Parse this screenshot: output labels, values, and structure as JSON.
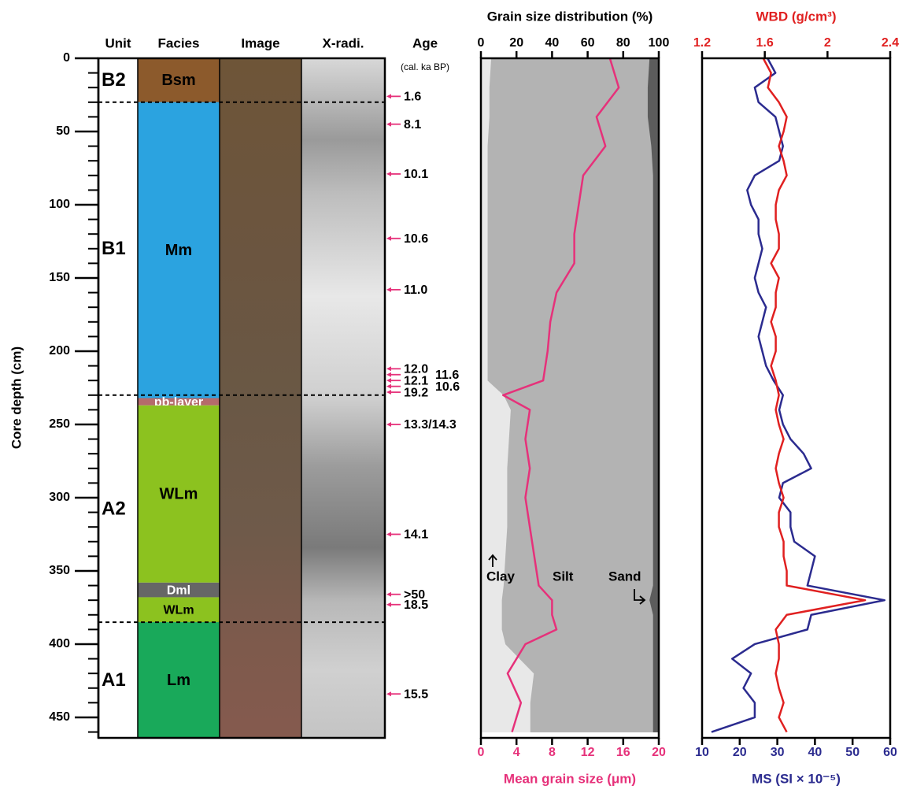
{
  "chart_data": [
    {
      "type": "core-log",
      "ylabel": "Core depth (cm)",
      "ylim": [
        0,
        464
      ],
      "yticks": [
        0,
        50,
        100,
        150,
        200,
        250,
        300,
        350,
        400,
        450
      ],
      "yminor_step": 10,
      "columns": [
        "Unit",
        "Facies",
        "Image",
        "X-radi.",
        "Age"
      ],
      "age_subtitle": "(cal. ka BP)",
      "units": [
        {
          "label": "B2",
          "top": 0,
          "bottom": 30
        },
        {
          "label": "B1",
          "top": 30,
          "bottom": 230
        },
        {
          "label": "A2",
          "top": 230,
          "bottom": 385
        },
        {
          "label": "A1",
          "top": 385,
          "bottom": 464
        }
      ],
      "facies": [
        {
          "label": "Bsm",
          "top": 0,
          "bottom": 30,
          "color": "#8c5a2c"
        },
        {
          "label": "Mm",
          "top": 30,
          "bottom": 232,
          "color": "#2ba3e0"
        },
        {
          "label": "pb-layer",
          "top": 232,
          "bottom": 237,
          "color": "#b56b6b",
          "text_color": "#ffffff"
        },
        {
          "label": "WLm",
          "top": 237,
          "bottom": 358,
          "color": "#8cc21f"
        },
        {
          "label": "Dml",
          "top": 358,
          "bottom": 368,
          "color": "#666666",
          "text_color": "#ffffff"
        },
        {
          "label": "WLm",
          "top": 368,
          "bottom": 385,
          "color": "#8cc21f"
        },
        {
          "label": "Lm",
          "top": 385,
          "bottom": 464,
          "color": "#19a95a"
        }
      ],
      "age_color": "#e6317a",
      "ages": [
        {
          "label": "1.6",
          "depth": 26
        },
        {
          "label": "8.1",
          "depth": 45
        },
        {
          "label": "10.1",
          "depth": 79
        },
        {
          "label": "10.6",
          "depth": 123
        },
        {
          "label": "11.0",
          "depth": 158
        },
        {
          "label": "12.0",
          "depth": 212
        },
        {
          "label": "11.6",
          "depth": 216
        },
        {
          "label": "12.1",
          "depth": 220
        },
        {
          "label": "10.6",
          "depth": 224
        },
        {
          "label": "19.2",
          "depth": 228
        },
        {
          "label": "13.3/14.3",
          "depth": 250
        },
        {
          "label": "14.1",
          "depth": 325
        },
        {
          "label": ">50",
          "depth": 366
        },
        {
          "label": "18.5",
          "depth": 373
        },
        {
          "label": "15.5",
          "depth": 434
        }
      ]
    },
    {
      "type": "area",
      "x2label": "Grain size distribution (%)",
      "x2lim": [
        0,
        100
      ],
      "x2ticks": [
        0,
        20,
        40,
        60,
        80,
        100
      ],
      "x2axis_color": "#000000",
      "xlabel": "Mean grain size (μm)",
      "xlim": [
        0,
        20
      ],
      "xticks": [
        0,
        4,
        8,
        12,
        16,
        20
      ],
      "xaxis_color": "#e6317a",
      "ylim": [
        0,
        464
      ],
      "y": [
        0,
        20,
        40,
        60,
        80,
        100,
        120,
        140,
        160,
        180,
        200,
        220,
        230,
        240,
        260,
        280,
        300,
        320,
        340,
        360,
        370,
        380,
        390,
        400,
        420,
        440,
        460
      ],
      "series": [
        {
          "name": "Clay",
          "type": "area",
          "axis": "x2",
          "color": "#e8e8e8",
          "values": [
            6,
            5,
            5,
            4,
            4,
            4,
            4,
            4,
            4,
            4,
            4,
            4,
            13,
            17,
            16,
            15,
            15,
            15,
            14,
            13,
            12,
            12,
            12,
            14,
            30,
            28,
            28
          ]
        },
        {
          "name": "Silt",
          "type": "area",
          "axis": "x2",
          "color": "#b3b3b3",
          "values": [
            89,
            89,
            89,
            92,
            93,
            93,
            93,
            93,
            93,
            93,
            93,
            93,
            84,
            80,
            81,
            82,
            82,
            82,
            83,
            84,
            83,
            85,
            85,
            83,
            67,
            69,
            69
          ]
        },
        {
          "name": "Sand",
          "type": "area",
          "axis": "x2",
          "color": "#5c5c5c",
          "values": [
            5,
            6,
            6,
            4,
            3,
            3,
            3,
            3,
            3,
            3,
            3,
            3,
            3,
            3,
            3,
            3,
            3,
            3,
            3,
            3,
            5,
            3,
            3,
            3,
            3,
            3,
            3
          ]
        },
        {
          "type": "line",
          "axis": "x",
          "color": "#e6317a",
          "values": [
            14.5,
            15.5,
            13,
            14,
            11.5,
            11,
            10.5,
            10.5,
            8.5,
            7.8,
            7.5,
            7,
            2.5,
            5.5,
            5,
            5.5,
            5,
            5.5,
            6,
            6.5,
            8,
            8,
            8.5,
            5,
            3,
            4.5,
            3.5
          ]
        }
      ]
    },
    {
      "type": "line",
      "x2label": "WBD (g/cm³)",
      "x2lim": [
        1.2,
        2.4
      ],
      "x2ticks": [
        1.2,
        1.6,
        2.0,
        2.4
      ],
      "x2axis_color": "#e02020",
      "xlabel": "MS (SI × 10⁻⁵)",
      "xlim": [
        10,
        60
      ],
      "xticks": [
        10,
        20,
        30,
        40,
        50,
        60
      ],
      "xaxis_color": "#2b2b8f",
      "ylim": [
        0,
        464
      ],
      "y": [
        0,
        10,
        20,
        30,
        40,
        50,
        60,
        70,
        80,
        90,
        100,
        110,
        120,
        130,
        140,
        150,
        160,
        170,
        180,
        190,
        200,
        210,
        220,
        230,
        240,
        250,
        260,
        270,
        280,
        290,
        300,
        310,
        320,
        330,
        340,
        350,
        360,
        370,
        380,
        390,
        400,
        410,
        420,
        430,
        440,
        450,
        460
      ],
      "series": [
        {
          "type": "line",
          "axis": "x",
          "color": "#2b2b8f",
          "values": [
            27.4,
            29.5,
            24,
            25,
            29.5,
            30.5,
            31.5,
            30.5,
            24,
            22,
            23,
            25,
            25,
            26,
            25,
            24,
            25,
            27,
            26,
            25,
            26,
            27,
            29,
            31.5,
            30.5,
            31.5,
            33.5,
            37,
            39,
            31.5,
            30.5,
            33.5,
            33.5,
            34.5,
            40,
            39,
            38,
            58.5,
            39,
            38,
            24,
            18,
            23,
            21,
            24,
            24,
            12.5
          ]
        },
        {
          "type": "line",
          "axis": "x2",
          "color": "#e02020",
          "values": [
            1.59,
            1.64,
            1.62,
            1.69,
            1.74,
            1.72,
            1.69,
            1.72,
            1.74,
            1.69,
            1.67,
            1.67,
            1.69,
            1.69,
            1.64,
            1.69,
            1.67,
            1.67,
            1.64,
            1.67,
            1.67,
            1.64,
            1.67,
            1.69,
            1.67,
            1.69,
            1.72,
            1.69,
            1.67,
            1.69,
            1.72,
            1.69,
            1.69,
            1.72,
            1.72,
            1.74,
            1.74,
            2.24,
            1.74,
            1.67,
            1.69,
            1.69,
            1.67,
            1.69,
            1.72,
            1.69,
            1.74
          ]
        }
      ]
    }
  ]
}
